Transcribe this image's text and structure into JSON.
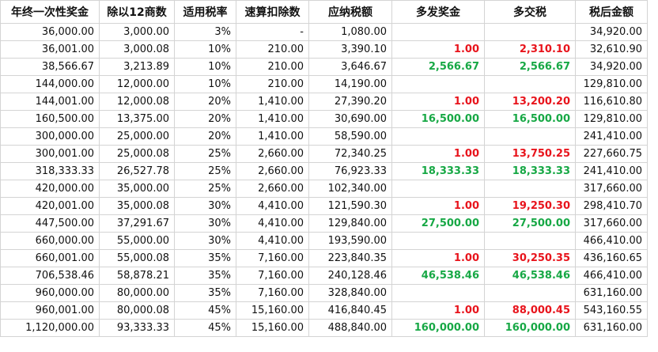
{
  "table": {
    "header": [
      "年终一次性奖金",
      "除以12商数",
      "适用税率",
      "速算扣除数",
      "应纳税额",
      "多发奖金",
      "多交税",
      "税后金额"
    ],
    "accent_colors": {
      "red": "#e8141c",
      "green": "#17a845"
    },
    "rows": [
      {
        "cells": [
          "36,000.00",
          "3,000.00",
          "3%",
          "-",
          "1,080.00",
          null,
          null,
          "34,920.00"
        ]
      },
      {
        "cells": [
          "36,001.00",
          "3,000.08",
          "10%",
          "210.00",
          "3,390.10",
          "1.00",
          "2,310.10",
          "32,610.90"
        ],
        "accent": "red"
      },
      {
        "cells": [
          "38,566.67",
          "3,213.89",
          "10%",
          "210.00",
          "3,646.67",
          "2,566.67",
          "2,566.67",
          "34,920.00"
        ],
        "accent": "green"
      },
      {
        "cells": [
          "144,000.00",
          "12,000.00",
          "10%",
          "210.00",
          "14,190.00",
          null,
          null,
          "129,810.00"
        ]
      },
      {
        "cells": [
          "144,001.00",
          "12,000.08",
          "20%",
          "1,410.00",
          "27,390.20",
          "1.00",
          "13,200.20",
          "116,610.80"
        ],
        "accent": "red"
      },
      {
        "cells": [
          "160,500.00",
          "13,375.00",
          "20%",
          "1,410.00",
          "30,690.00",
          "16,500.00",
          "16,500.00",
          "129,810.00"
        ],
        "accent": "green"
      },
      {
        "cells": [
          "300,000.00",
          "25,000.00",
          "20%",
          "1,410.00",
          "58,590.00",
          null,
          null,
          "241,410.00"
        ]
      },
      {
        "cells": [
          "300,001.00",
          "25,000.08",
          "25%",
          "2,660.00",
          "72,340.25",
          "1.00",
          "13,750.25",
          "227,660.75"
        ],
        "accent": "red"
      },
      {
        "cells": [
          "318,333.33",
          "26,527.78",
          "25%",
          "2,660.00",
          "76,923.33",
          "18,333.33",
          "18,333.33",
          "241,410.00"
        ],
        "accent": "green"
      },
      {
        "cells": [
          "420,000.00",
          "35,000.00",
          "25%",
          "2,660.00",
          "102,340.00",
          null,
          null,
          "317,660.00"
        ]
      },
      {
        "cells": [
          "420,001.00",
          "35,000.08",
          "30%",
          "4,410.00",
          "121,590.30",
          "1.00",
          "19,250.30",
          "298,410.70"
        ],
        "accent": "red"
      },
      {
        "cells": [
          "447,500.00",
          "37,291.67",
          "30%",
          "4,410.00",
          "129,840.00",
          "27,500.00",
          "27,500.00",
          "317,660.00"
        ],
        "accent": "green"
      },
      {
        "cells": [
          "660,000.00",
          "55,000.00",
          "30%",
          "4,410.00",
          "193,590.00",
          null,
          null,
          "466,410.00"
        ]
      },
      {
        "cells": [
          "660,001.00",
          "55,000.08",
          "35%",
          "7,160.00",
          "223,840.35",
          "1.00",
          "30,250.35",
          "436,160.65"
        ],
        "accent": "red"
      },
      {
        "cells": [
          "706,538.46",
          "58,878.21",
          "35%",
          "7,160.00",
          "240,128.46",
          "46,538.46",
          "46,538.46",
          "466,410.00"
        ],
        "accent": "green"
      },
      {
        "cells": [
          "960,000.00",
          "80,000.00",
          "35%",
          "7,160.00",
          "328,840.00",
          null,
          null,
          "631,160.00"
        ]
      },
      {
        "cells": [
          "960,001.00",
          "80,000.08",
          "45%",
          "15,160.00",
          "416,840.45",
          "1.00",
          "88,000.45",
          "543,160.55"
        ],
        "accent": "red"
      },
      {
        "cells": [
          "1,120,000.00",
          "93,333.33",
          "45%",
          "15,160.00",
          "488,840.00",
          "160,000.00",
          "160,000.00",
          "631,160.00"
        ],
        "accent": "green"
      }
    ]
  }
}
